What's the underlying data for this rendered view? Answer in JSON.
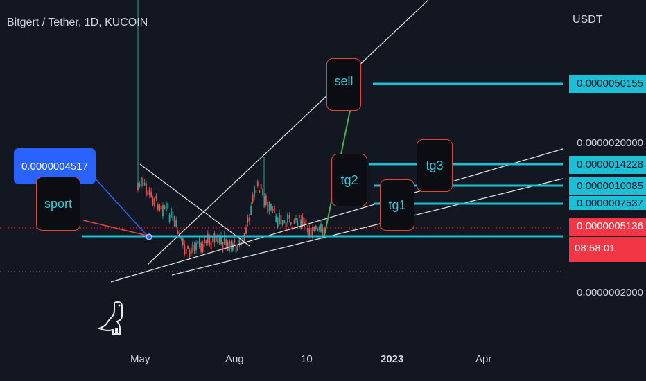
{
  "header": {
    "symbol_title": "Bitgert / Tether, 1D, KUCOIN",
    "currency": "USDT"
  },
  "price_axis": {
    "sell_level": "0.0000050155",
    "level_2e6": "0.0000020000",
    "tg3_level": "0.0000014228",
    "tg2_level": "0.0000010085",
    "tg1_level": "0.0000007537",
    "last_price": "0.0000005136",
    "countdown": "08:58:01",
    "level_2e7": "0.0000002000"
  },
  "time_axis": [
    "May",
    "Aug",
    "10",
    "2023",
    "Apr"
  ],
  "annotations": {
    "entry_price": "0.0000004517",
    "sport": "sport",
    "sell": "sell",
    "tg1": "tg1",
    "tg2": "tg2",
    "tg3": "tg3"
  },
  "colors": {
    "background": "#131722",
    "cyan_line": "#1bc0d6",
    "up_candle": "#26a69a",
    "down_candle": "#ef5350",
    "last_price": "#f23645",
    "entry_label": "#2962ff",
    "callout_border": "#e0473a",
    "arrow": "#4caf50"
  },
  "icons": {
    "brand_logo": "dinosaur-logo-icon"
  }
}
